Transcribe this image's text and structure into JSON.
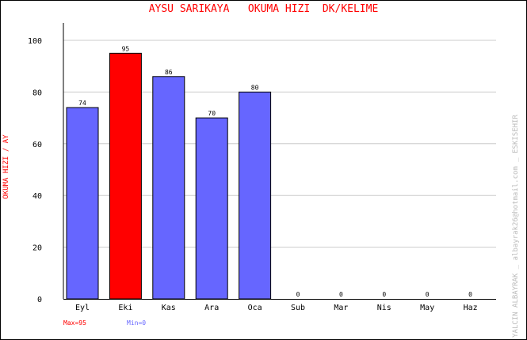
{
  "chart_data": {
    "type": "bar",
    "title": "AYSU SARIKAYA   OKUMA HIZI  DK/KELIME",
    "ylabel": "OKUMA HIZI / AY",
    "xlabel": "",
    "categories": [
      "Eyl",
      "Eki",
      "Kas",
      "Ara",
      "Oca",
      "Sub",
      "Mar",
      "Nis",
      "May",
      "Haz"
    ],
    "values": [
      74,
      95,
      86,
      70,
      80,
      0,
      0,
      0,
      0,
      0
    ],
    "ylim": [
      0,
      100
    ],
    "yticks": [
      0,
      20,
      40,
      60,
      80,
      100
    ],
    "grid": true,
    "bar_color": "#6666ff",
    "max_color": "#ff0000",
    "max_label": "Max=95",
    "min_label": "Min=0",
    "side_text": "YALCIN ALBAYRAK _ albayrak26@hotmail.com _ ESKISEHIR"
  }
}
